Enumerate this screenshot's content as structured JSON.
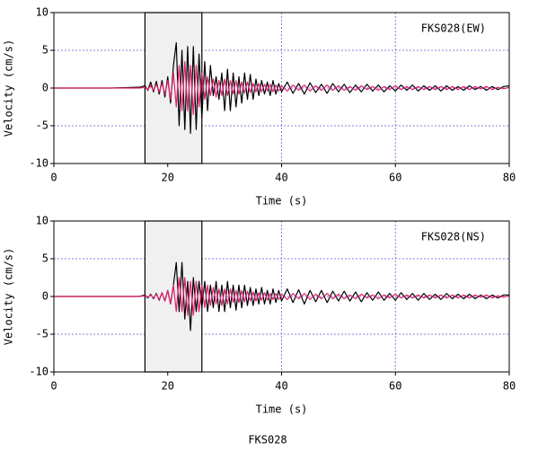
{
  "title": "FKS028",
  "chart_data": [
    {
      "type": "line",
      "annotation": "FKS028(EW)",
      "xlabel": "Time (s)",
      "ylabel": "Velocity (cm/s)",
      "xlim": [
        0,
        80
      ],
      "ylim": [
        -10,
        10
      ],
      "xticks": [
        0,
        20,
        40,
        60,
        80
      ],
      "yticks": [
        -10,
        -5,
        0,
        5,
        10
      ],
      "grid": true,
      "span": [
        16,
        26
      ],
      "x": [
        0,
        5,
        10,
        15,
        16,
        16.5,
        17,
        17.5,
        18,
        18.5,
        19,
        19.5,
        20,
        20.5,
        21,
        21.5,
        22,
        22.5,
        23,
        23.5,
        24,
        24.5,
        25,
        25.5,
        26,
        26.5,
        27,
        27.5,
        28,
        28.5,
        29,
        29.5,
        30,
        30.5,
        31,
        31.5,
        32,
        32.5,
        33,
        33.5,
        34,
        34.5,
        35,
        35.5,
        36,
        36.5,
        37,
        37.5,
        38,
        38.5,
        39,
        39.5,
        40,
        41,
        42,
        43,
        44,
        45,
        46,
        47,
        48,
        49,
        50,
        51,
        52,
        53,
        54,
        55,
        56,
        57,
        58,
        59,
        60,
        61,
        62,
        63,
        64,
        65,
        66,
        67,
        68,
        69,
        70,
        71,
        72,
        73,
        74,
        75,
        76,
        77,
        78,
        79,
        80
      ],
      "series": [
        {
          "color": "#000000",
          "values": [
            0,
            0,
            0,
            0.1,
            0.3,
            -0.3,
            0.8,
            -0.5,
            0.9,
            -0.8,
            1.0,
            -1.2,
            1.5,
            -2,
            3,
            6,
            -5,
            5,
            -5.5,
            5.5,
            -6,
            5.5,
            -5.5,
            4.5,
            -4,
            3.5,
            -3,
            3,
            -1,
            1.5,
            -1.5,
            2,
            -3,
            2.5,
            -3,
            2,
            -2.5,
            1.5,
            -2,
            2,
            -1.5,
            1.8,
            -1.5,
            1.2,
            -1,
            1,
            -0.8,
            0.8,
            -1,
            1,
            -0.8,
            0.6,
            -0.5,
            0.8,
            -0.7,
            0.6,
            -0.8,
            0.7,
            -0.6,
            0.5,
            -0.7,
            0.6,
            -0.5,
            0.5,
            -0.6,
            0.4,
            -0.5,
            0.5,
            -0.4,
            0.4,
            -0.5,
            0.3,
            -0.4,
            0.4,
            -0.3,
            0.4,
            -0.4,
            0.3,
            -0.3,
            0.3,
            -0.4,
            0.3,
            -0.3,
            0.2,
            -0.3,
            0.3,
            -0.2,
            0.2,
            -0.3,
            0.2,
            -0.2,
            0.2,
            0.3
          ]
        },
        {
          "color": "#e0206e",
          "values": [
            0,
            0,
            0,
            0,
            0.1,
            -0.2,
            0.3,
            -0.3,
            0.5,
            -0.5,
            0.6,
            -0.8,
            1,
            -1.5,
            2,
            -2.5,
            3,
            -3,
            3.5,
            -3,
            3,
            -3.5,
            3,
            -2.5,
            2,
            -1.5,
            1.5,
            -1,
            1.2,
            -1.2,
            1,
            -1,
            1.2,
            -1,
            1,
            -0.8,
            1,
            -0.8,
            0.8,
            -0.7,
            0.8,
            -0.6,
            0.6,
            -0.5,
            0.6,
            -0.5,
            0.5,
            -0.4,
            0.5,
            -0.5,
            0.4,
            -0.4,
            0.3,
            -0.4,
            0.4,
            -0.3,
            0.4,
            -0.4,
            0.3,
            -0.3,
            0.4,
            -0.3,
            0.3,
            -0.3,
            0.2,
            -0.3,
            0.3,
            -0.2,
            0.2,
            -0.3,
            0.2,
            -0.2,
            0.3,
            -0.2,
            0.2,
            -0.2,
            0.2,
            -0.2,
            0.2,
            -0.2,
            0.2,
            -0.2,
            0.2,
            -0.2,
            0.2,
            -0.2,
            0.2,
            -0.1,
            0.2,
            -0.2,
            0.1,
            -0.1,
            0.1
          ]
        }
      ]
    },
    {
      "type": "line",
      "annotation": "FKS028(NS)",
      "xlabel": "Time (s)",
      "ylabel": "Velocity (cm/s)",
      "xlim": [
        0,
        80
      ],
      "ylim": [
        -10,
        10
      ],
      "xticks": [
        0,
        20,
        40,
        60,
        80
      ],
      "yticks": [
        -10,
        -5,
        0,
        5,
        10
      ],
      "grid": true,
      "span": [
        16,
        26
      ],
      "x": [
        0,
        5,
        10,
        15,
        16,
        16.5,
        17,
        17.5,
        18,
        18.5,
        19,
        19.5,
        20,
        20.5,
        21,
        21.5,
        22,
        22.5,
        23,
        23.5,
        24,
        24.5,
        25,
        25.5,
        26,
        26.5,
        27,
        27.5,
        28,
        28.5,
        29,
        29.5,
        30,
        30.5,
        31,
        31.5,
        32,
        32.5,
        33,
        33.5,
        34,
        34.5,
        35,
        35.5,
        36,
        36.5,
        37,
        37.5,
        38,
        38.5,
        39,
        39.5,
        40,
        41,
        42,
        43,
        44,
        45,
        46,
        47,
        48,
        49,
        50,
        51,
        52,
        53,
        54,
        55,
        56,
        57,
        58,
        59,
        60,
        61,
        62,
        63,
        64,
        65,
        66,
        67,
        68,
        69,
        70,
        71,
        72,
        73,
        74,
        75,
        76,
        77,
        78,
        79,
        80
      ],
      "series": [
        {
          "color": "#000000",
          "values": [
            0,
            0,
            0,
            0,
            0.2,
            -0.2,
            0.3,
            -0.3,
            0.4,
            -0.5,
            0.5,
            -0.6,
            0.8,
            -1,
            1.5,
            4.5,
            -2,
            4.5,
            -3,
            2,
            -4.5,
            2.5,
            -2,
            2,
            -1.5,
            2,
            -2,
            1.5,
            -1.5,
            2,
            -2,
            1.5,
            -2,
            2,
            -1.5,
            1.5,
            -1.8,
            1.5,
            -1.5,
            1.5,
            -1.2,
            1.2,
            -1.2,
            1,
            -1,
            1.2,
            -1,
            0.8,
            -1,
            1,
            -0.8,
            0.8,
            -0.6,
            1,
            -0.8,
            0.9,
            -1,
            0.8,
            -0.7,
            0.8,
            -0.8,
            0.7,
            -0.6,
            0.7,
            -0.6,
            0.6,
            -0.7,
            0.5,
            -0.5,
            0.6,
            -0.5,
            0.4,
            -0.5,
            0.5,
            -0.4,
            0.4,
            -0.5,
            0.4,
            -0.4,
            0.3,
            -0.4,
            0.4,
            -0.3,
            0.3,
            -0.3,
            0.3,
            -0.3,
            0.2,
            -0.3,
            0.2,
            -0.2,
            0.2,
            0.2
          ]
        },
        {
          "color": "#e0206e",
          "values": [
            0,
            0,
            0,
            0,
            0.1,
            -0.1,
            0.2,
            -0.2,
            0.3,
            -0.4,
            0.5,
            -0.6,
            0.8,
            -1,
            1.5,
            -2,
            2.5,
            -2,
            2.5,
            -2.5,
            2,
            -2.5,
            2,
            -2,
            1.5,
            -1.5,
            1.5,
            -1.2,
            1.2,
            -1,
            1,
            -1.2,
            1,
            -1,
            1,
            -0.8,
            0.8,
            -0.8,
            0.8,
            -0.7,
            0.7,
            -0.6,
            0.6,
            -0.6,
            0.5,
            -0.5,
            0.5,
            -0.5,
            0.4,
            -0.4,
            0.4,
            -0.4,
            0.3,
            -0.4,
            0.4,
            -0.3,
            0.4,
            -0.4,
            0.3,
            -0.3,
            0.4,
            -0.3,
            0.3,
            -0.3,
            0.2,
            -0.3,
            0.3,
            -0.2,
            0.2,
            -0.3,
            0.2,
            -0.2,
            0.3,
            -0.2,
            0.2,
            -0.2,
            0.2,
            -0.2,
            0.2,
            -0.2,
            0.2,
            -0.2,
            0.2,
            -0.2,
            0.2,
            -0.2,
            0.2,
            -0.1,
            0.2,
            -0.2,
            0.1,
            -0.1,
            0.1
          ]
        }
      ]
    }
  ]
}
